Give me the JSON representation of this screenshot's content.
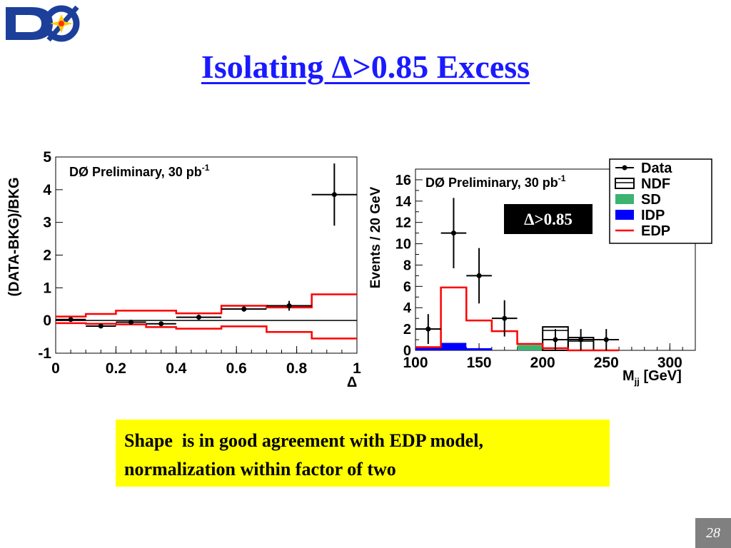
{
  "slide": {
    "logo_text": "DØ",
    "title": "Isolating Δ>0.85 Excess",
    "note_lines": [
      "Shape  is in good agreement with EDP model,",
      "normalization within factor of two"
    ],
    "page_number": "28"
  },
  "colors": {
    "title": "#1a1aff",
    "note_background": "#ffff00",
    "edp": "#ff0000",
    "idp": "#0000ff",
    "sd": "#3cb371",
    "ndf": "#000000",
    "data": "#000000"
  },
  "chart_data": [
    {
      "type": "scatter",
      "annotation": "DØ Preliminary, 30 pb",
      "annotation_superscript": "-1",
      "xlabel": "Δ",
      "ylabel": "(DATA-BKG)/BKG",
      "xlim": [
        0,
        1
      ],
      "ylim": [
        -1,
        5
      ],
      "x_ticks": [
        "0",
        "0.2",
        "0.4",
        "0.6",
        "0.8",
        "1"
      ],
      "y_ticks": [
        "-1",
        "0",
        "1",
        "2",
        "3",
        "4",
        "5"
      ],
      "grid": false,
      "data_points": [
        {
          "x": 0.05,
          "y": 0.03,
          "xerr": 0.05,
          "yerr": 0.05
        },
        {
          "x": 0.15,
          "y": -0.17,
          "xerr": 0.05,
          "yerr": 0.05
        },
        {
          "x": 0.25,
          "y": -0.05,
          "xerr": 0.05,
          "yerr": 0.05
        },
        {
          "x": 0.35,
          "y": -0.1,
          "xerr": 0.05,
          "yerr": 0.05
        },
        {
          "x": 0.475,
          "y": 0.1,
          "xerr": 0.075,
          "yerr": 0.08
        },
        {
          "x": 0.625,
          "y": 0.35,
          "xerr": 0.075,
          "yerr": 0.08
        },
        {
          "x": 0.775,
          "y": 0.45,
          "xerr": 0.075,
          "yerr": 0.15
        },
        {
          "x": 0.925,
          "y": 3.85,
          "xerr": 0.075,
          "yerr": 0.95
        }
      ],
      "band_edges": [
        0,
        0.1,
        0.2,
        0.3,
        0.4,
        0.55,
        0.7,
        0.85,
        1.0
      ],
      "band_upper": [
        0.12,
        0.2,
        0.3,
        0.3,
        0.22,
        0.45,
        0.4,
        0.8
      ],
      "band_lower": [
        -0.08,
        -0.1,
        -0.12,
        -0.2,
        -0.25,
        -0.18,
        -0.35,
        -0.55
      ],
      "reference_line": 0
    },
    {
      "type": "bar",
      "annotation": "DØ Preliminary, 30 pb",
      "annotation_superscript": "-1",
      "inset_label": "Δ>0.85",
      "xlabel_main": "M",
      "xlabel_sub": "jj",
      "xlabel_unit": " [GeV]",
      "ylabel": "Events / 20 GeV",
      "xlim": [
        100,
        320
      ],
      "ylim": [
        0,
        17
      ],
      "x_ticks": [
        "100",
        "150",
        "200",
        "250",
        "300"
      ],
      "x_tick_values": [
        100,
        150,
        200,
        250,
        300
      ],
      "y_ticks": [
        "0",
        "2",
        "4",
        "6",
        "8",
        "10",
        "12",
        "14",
        "16"
      ],
      "grid": false,
      "legend_position": "top-right",
      "legend": [
        {
          "name": "Data",
          "kind": "data"
        },
        {
          "name": "NDF",
          "kind": "ndf"
        },
        {
          "name": "SD",
          "kind": "sd"
        },
        {
          "name": "IDP",
          "kind": "idp"
        },
        {
          "name": "EDP",
          "kind": "edp"
        }
      ],
      "bin_edges": [
        100,
        120,
        140,
        160,
        180,
        200,
        220,
        240,
        260
      ],
      "series": [
        {
          "name": "NDF",
          "values": [
            0,
            0,
            0,
            0,
            0,
            2.2,
            1.2,
            0
          ]
        },
        {
          "name": "SD",
          "values": [
            0,
            0,
            0,
            0,
            0.5,
            0,
            0,
            0
          ]
        },
        {
          "name": "IDP",
          "values": [
            0.3,
            0.7,
            0.2,
            0,
            0,
            0,
            0,
            0
          ]
        },
        {
          "name": "EDP",
          "values": [
            0.3,
            5.9,
            2.8,
            1.8,
            0.6,
            0.2,
            0,
            0
          ]
        }
      ],
      "data_points": [
        {
          "x": 110,
          "y": 2,
          "xerr": 10,
          "yerr": 1.4
        },
        {
          "x": 130,
          "y": 11,
          "xerr": 10,
          "yerr": 3.3
        },
        {
          "x": 150,
          "y": 7,
          "xerr": 10,
          "yerr": 2.6
        },
        {
          "x": 170,
          "y": 3,
          "xerr": 10,
          "yerr": 1.7
        },
        {
          "x": 210,
          "y": 1,
          "xerr": 10,
          "yerr": 1.0
        },
        {
          "x": 230,
          "y": 1,
          "xerr": 10,
          "yerr": 1.0
        },
        {
          "x": 250,
          "y": 1,
          "xerr": 10,
          "yerr": 1.0
        }
      ]
    }
  ]
}
